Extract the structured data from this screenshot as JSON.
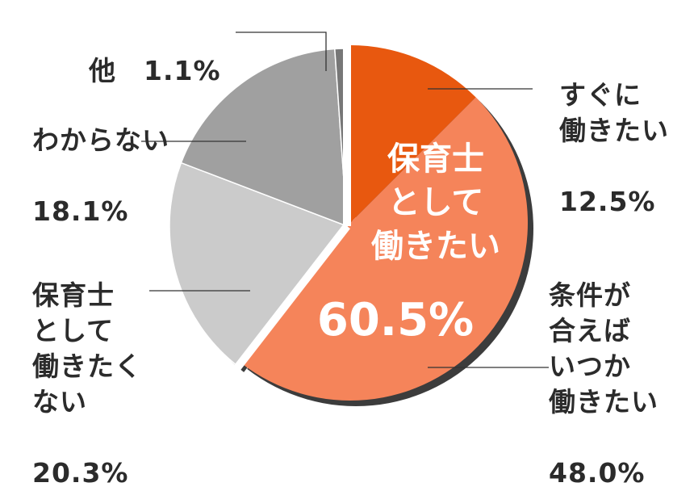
{
  "chart_data": {
    "type": "pie",
    "slices": [
      {
        "label": "すぐに\n働きたい",
        "value_text": "12.5%",
        "value": 12.5,
        "color": "#e8580f"
      },
      {
        "label": "条件が\n合えば\nいつか\n働きたい",
        "value_text": "48.0%",
        "value": 48.0,
        "color": "#f5845a"
      },
      {
        "label": "保育士\nとして\n働きたく\nない",
        "value_text": "20.3%",
        "value": 20.3,
        "color": "#cbcbcb"
      },
      {
        "label": "わからない",
        "value_text": "18.1%",
        "value": 18.1,
        "color": "#a0a0a0"
      },
      {
        "label": "他",
        "value_text": "1.1%",
        "value": 1.1,
        "color": "#777777"
      }
    ],
    "group": {
      "label": "保育士\nとして\n働きたい",
      "value_text": "60.5%",
      "value": 60.5
    },
    "colors": {
      "shadow": "#3c3c3c",
      "leader": "#333333",
      "text": "#2b2b2b"
    }
  }
}
